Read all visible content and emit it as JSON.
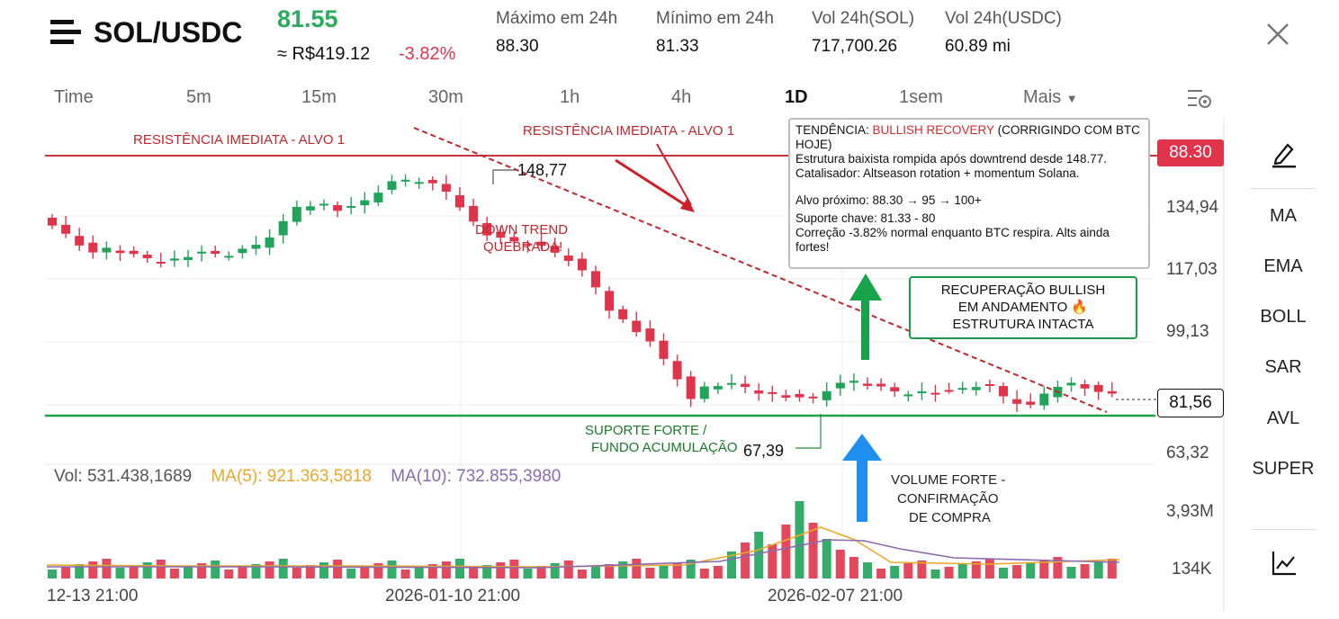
{
  "header": {
    "pair": "SOL/USDC",
    "price": "81.55",
    "price_brl": "≈ R$419.12",
    "change": "-3.82%",
    "stats": [
      {
        "label": "Máximo em 24h",
        "value": "88.30"
      },
      {
        "label": "Mínimo em 24h",
        "value": "81.33"
      },
      {
        "label": "Vol 24h(SOL)",
        "value": "717,700.26"
      },
      {
        "label": "Vol 24h(USDC)",
        "value": "60.89 mi"
      }
    ]
  },
  "timeframes": [
    "Time",
    "5m",
    "15m",
    "30m",
    "1h",
    "4h",
    "1D",
    "1sem"
  ],
  "timeframe_active": "1D",
  "more_label": "Mais",
  "side_indicators": [
    "MA",
    "EMA",
    "BOLL",
    "SAR",
    "AVL",
    "SUPER"
  ],
  "y_axis": [
    "134,94",
    "117,03",
    "99,13",
    "63,32"
  ],
  "price_tags": {
    "resistance": "88.30",
    "current": "81,56"
  },
  "volume_axis": [
    "3,93M",
    "134K"
  ],
  "x_axis": [
    "12-13 21:00",
    "2026-01-10 21:00",
    "2026-02-07 21:00"
  ],
  "volume_legend": {
    "vol": "Vol: 531.438,1689",
    "ma5": "MA(5): 921.363,5818",
    "ma10": "MA(10): 732.855,3980"
  },
  "annotations": {
    "resist_left": "RESISTÊNCIA IMEDIATA - ALVO 1",
    "resist_mid": "RESISTÊNCIA IMEDIATA - ALVO 1",
    "high_label": "148,77",
    "low_label": "67,39",
    "downtrend_1": "DOWN TREND",
    "downtrend_2": "QUEBRADA!",
    "support_1": "SUPORTE FORTE /",
    "support_2": "FUNDO ACUMULAÇÃO",
    "volume_1": "VOLUME FORTE -",
    "volume_2": "CONFIRMAÇÃO",
    "volume_3": "DE COMPRA",
    "recovery_1": "RECUPERAÇÃO BULLISH",
    "recovery_2": "EM ANDAMENTO 🔥",
    "recovery_3": "ESTRUTURA INTACTA"
  },
  "infobox": {
    "trend_prefix": "TENDÊNCIA: ",
    "trend_value": "BULLISH RECOVERY",
    "trend_suffix": " (CORRIGINDO COM BTC HOJE)",
    "line2": "Estrutura baixista rompida após downtrend desde 148.77.",
    "line3": "Catalisador: Altseason rotation + momentum Solana.",
    "line4": "Alvo próximo: 88.30 → 95 → 100+",
    "line5": "Suporte chave: 81.33 - 80",
    "line6": "Correção -3.82% normal enquanto BTC respira. Alts ainda fortes!"
  },
  "colors": {
    "up": "#1fa45a",
    "down": "#e0344b",
    "accent_green": "#2bac5c",
    "resistance": "#c8333c",
    "support": "#22a04a",
    "ma5": "#e8a92a",
    "ma10": "#8a6bb0"
  }
}
